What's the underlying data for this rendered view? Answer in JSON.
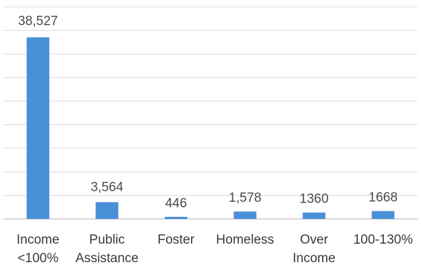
{
  "chart_data": {
    "type": "bar",
    "categories": [
      [
        "Income",
        "<100%"
      ],
      [
        "Public",
        "Assistance"
      ],
      [
        "Foster"
      ],
      [
        "Homeless"
      ],
      [
        "Over",
        "Income"
      ],
      [
        "100-130%"
      ]
    ],
    "values": [
      38527,
      3564,
      446,
      1578,
      1360,
      1668
    ],
    "value_labels": [
      "38,527",
      "3,564",
      "446",
      "1,578",
      "1360",
      "1668"
    ],
    "title": "",
    "xlabel": "",
    "ylabel": "",
    "ylim": [
      0,
      45000
    ],
    "grid": true,
    "colors": {
      "bar": "#4a90d9"
    }
  }
}
